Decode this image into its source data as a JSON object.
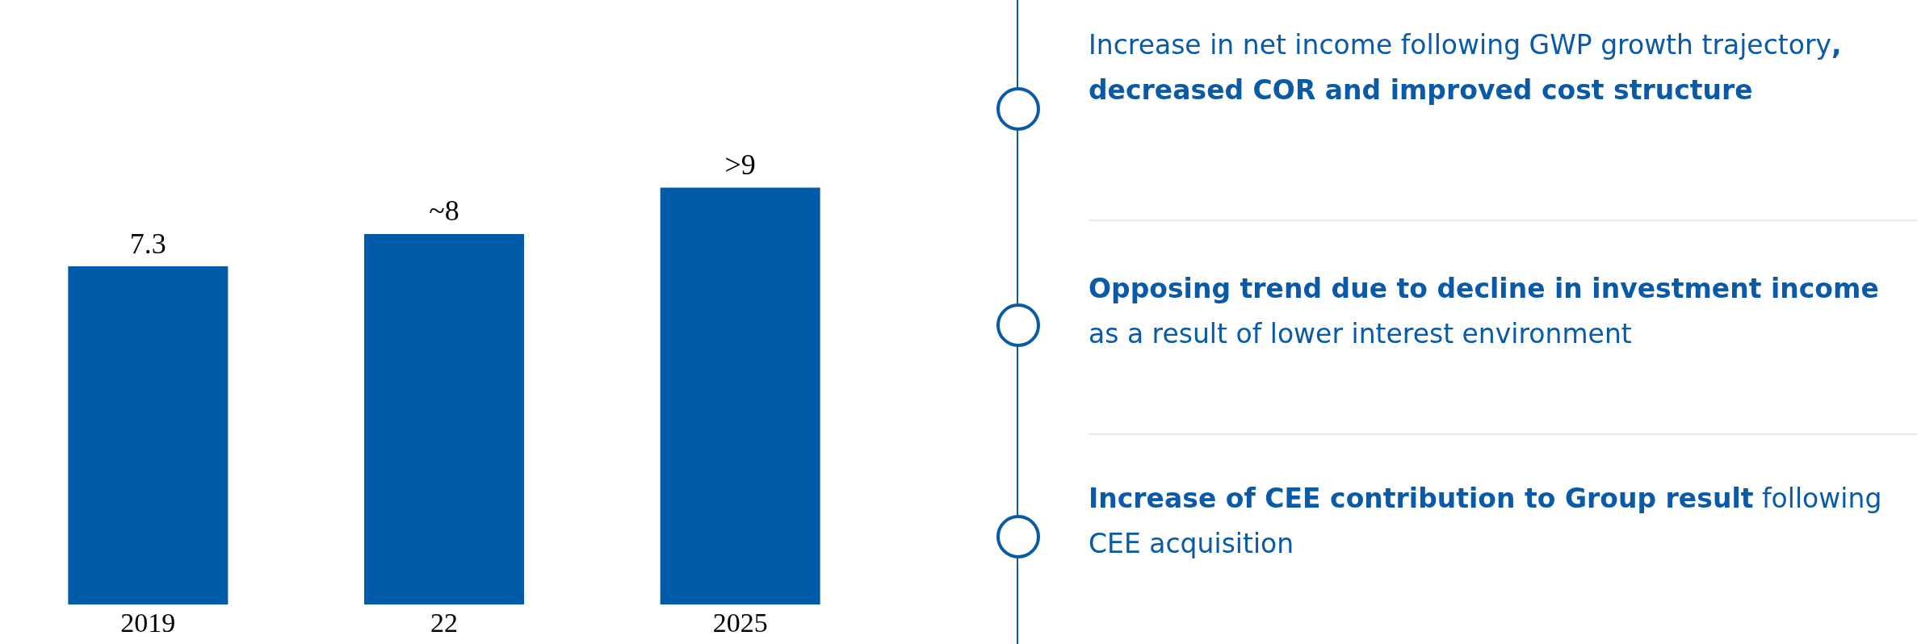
{
  "chart_data": {
    "type": "bar",
    "categories": [
      "2019",
      "22",
      "2025"
    ],
    "values": [
      7.3,
      8,
      9
    ],
    "value_labels": [
      "7.3",
      "~8",
      ">9"
    ],
    "color": "#005ca9",
    "grid": false,
    "legend": false,
    "tick_labels": "x",
    "annotations": [
      "Increase in net income following GWP growth trajectory",
      ", decreased COR and improved cost structure",
      "Opposing trend due to decline in investment income",
      " as a result of lower interest environment",
      "Increase of CEE contribution to Group result",
      " following CEE acquisition"
    ]
  }
}
